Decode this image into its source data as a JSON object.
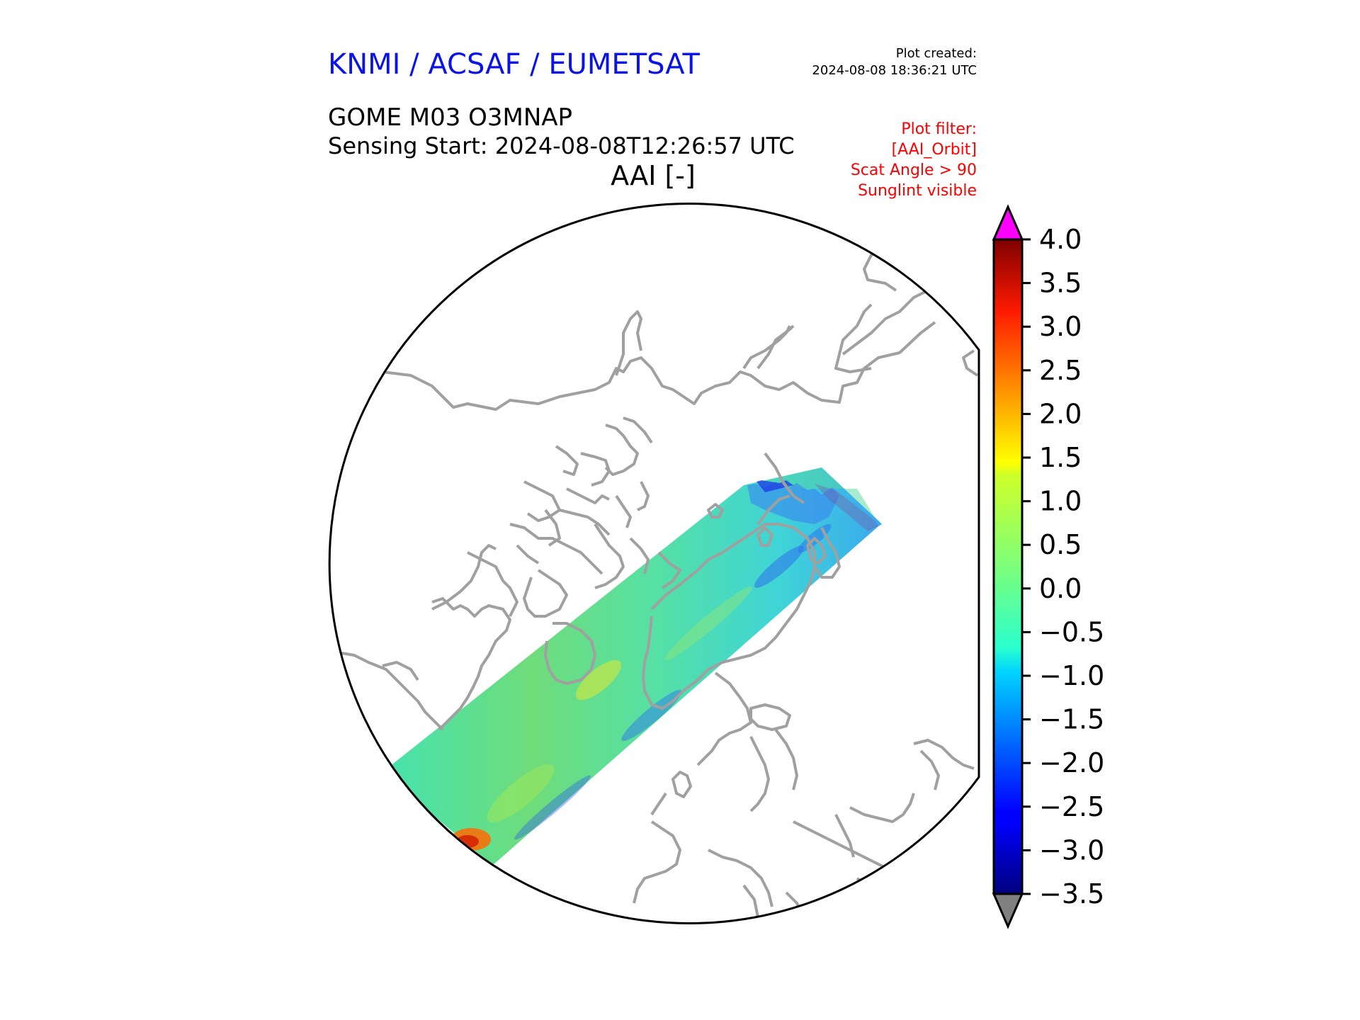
{
  "header": {
    "organization": "KNMI / ACSAF / EUMETSAT",
    "plot_created_label": "Plot created:",
    "plot_created_time": "2024-08-08 18:36:21 UTC",
    "product": "GOME M03 O3MNAP",
    "sensing_start": "Sensing Start: 2024-08-08T12:26:57 UTC",
    "variable": "AAI [-]"
  },
  "filters": {
    "title": "Plot filter:",
    "items": [
      "[AAI_Orbit]",
      "Scat Angle > 90",
      "Sunglint visible"
    ],
    "color": "#ff0000"
  },
  "map": {
    "projection": "north polar stereographic",
    "coastline_color": "#a0a0a0",
    "track_description_colors": {
      "dominant": "#6ed96a",
      "secondary": "#3fe0c0"
    }
  },
  "colorbar": {
    "ticks": [
      "4.0",
      "3.5",
      "3.0",
      "2.5",
      "2.0",
      "1.5",
      "1.0",
      "0.5",
      "0.0",
      "−0.5",
      "−1.0",
      "−1.5",
      "−2.0",
      "−2.5",
      "−3.0",
      "−3.5"
    ],
    "min": -3.5,
    "max": 4.0,
    "over_color": "#ff00ff",
    "under_color": "#808080",
    "colormap": "jet"
  }
}
